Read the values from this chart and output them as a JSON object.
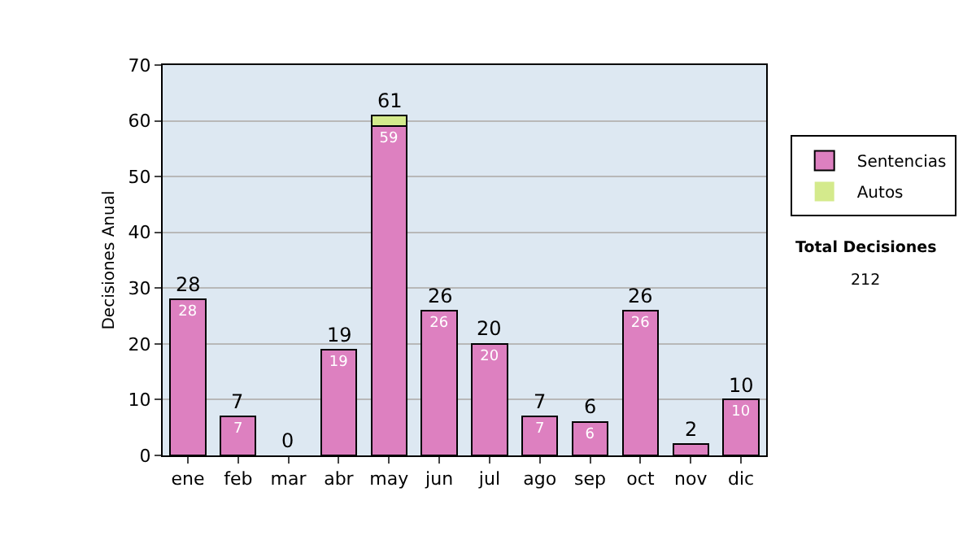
{
  "chart_data": {
    "type": "bar",
    "stacked": true,
    "ylabel": "Decisiones Anual",
    "categories": [
      "ene",
      "feb",
      "mar",
      "abr",
      "may",
      "jun",
      "jul",
      "ago",
      "sep",
      "oct",
      "nov",
      "dic"
    ],
    "series": [
      {
        "name": "Sentencias",
        "color": "#dd80c0",
        "values": [
          28,
          7,
          0,
          19,
          59,
          26,
          20,
          7,
          6,
          26,
          2,
          10
        ],
        "value_labels": [
          "28",
          "7",
          null,
          "19",
          "59",
          "26",
          "20",
          "7",
          "6",
          "26",
          null,
          "10"
        ]
      },
      {
        "name": "Autos",
        "color": "#d4ea8c",
        "values": [
          0,
          0,
          0,
          0,
          2,
          0,
          0,
          0,
          0,
          0,
          0,
          0
        ]
      }
    ],
    "totals": [
      "28",
      "7",
      "0",
      "19",
      "61",
      "26",
      "20",
      "7",
      "6",
      "26",
      "2",
      "10"
    ],
    "ylim": [
      0,
      70
    ],
    "yticks": [
      0,
      10,
      20,
      30,
      40,
      50,
      60,
      70
    ],
    "grid": "y",
    "legend": "right",
    "annotations": [
      "Total Decisiones",
      "212"
    ]
  }
}
